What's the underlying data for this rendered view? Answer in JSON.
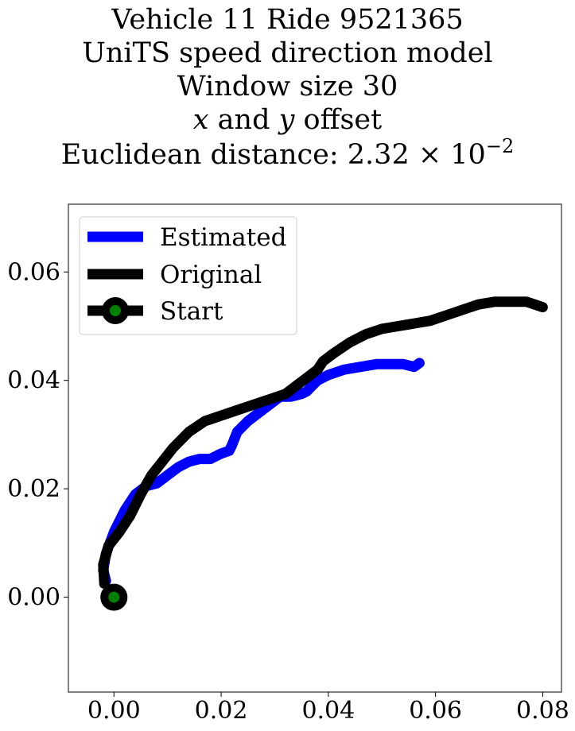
{
  "title": {
    "line1": "Vehicle 11 Ride 9521365",
    "line2": "UniTS speed direction model",
    "line3": "Window size 30",
    "line4_var1": "x",
    "line4_and": " and ",
    "line4_var2": "y",
    "line4_rest": " offset",
    "line5_prefix": "Euclidean distance: 2.32 × 10",
    "line5_exponent": "−2"
  },
  "chart_data": {
    "type": "line",
    "xlim": [
      -0.0085,
      0.0835
    ],
    "ylim": [
      -0.0175,
      0.0725
    ],
    "xticks": [
      0.0,
      0.02,
      0.04,
      0.06,
      0.08
    ],
    "xtick_labels": [
      "0.00",
      "0.02",
      "0.04",
      "0.06",
      "0.08"
    ],
    "yticks": [
      0.0,
      0.02,
      0.04,
      0.06
    ],
    "ytick_labels": [
      "0.00",
      "0.02",
      "0.04",
      "0.06"
    ],
    "grid": false,
    "legend_position": "upper left",
    "series": [
      {
        "name": "Estimated",
        "color": "#0000ff",
        "x": [
          -0.0015,
          -0.002,
          -0.0015,
          0.0,
          0.002,
          0.004,
          0.006,
          0.008,
          0.01,
          0.012,
          0.014,
          0.016,
          0.018,
          0.02,
          0.0215,
          0.022,
          0.023,
          0.025,
          0.027,
          0.029,
          0.031,
          0.033,
          0.035,
          0.036,
          0.037,
          0.038,
          0.04,
          0.043,
          0.046,
          0.049,
          0.052,
          0.054,
          0.056,
          0.057
        ],
        "y": [
          0.003,
          0.005,
          0.008,
          0.012,
          0.016,
          0.019,
          0.0205,
          0.021,
          0.0225,
          0.024,
          0.025,
          0.0255,
          0.0255,
          0.0265,
          0.027,
          0.028,
          0.0305,
          0.0325,
          0.034,
          0.0355,
          0.037,
          0.037,
          0.0375,
          0.038,
          0.039,
          0.04,
          0.041,
          0.042,
          0.0425,
          0.043,
          0.043,
          0.043,
          0.0425,
          0.0432
        ]
      },
      {
        "name": "Original",
        "color": "#000000",
        "x": [
          -0.0018,
          -0.002,
          -0.001,
          0.001,
          0.003,
          0.005,
          0.007,
          0.009,
          0.011,
          0.014,
          0.017,
          0.02,
          0.023,
          0.026,
          0.029,
          0.032,
          0.034,
          0.036,
          0.038,
          0.039,
          0.041,
          0.044,
          0.047,
          0.05,
          0.053,
          0.056,
          0.059,
          0.062,
          0.065,
          0.068,
          0.071,
          0.074,
          0.077,
          0.08
        ],
        "y": [
          0.0025,
          0.006,
          0.0095,
          0.012,
          0.015,
          0.019,
          0.0225,
          0.025,
          0.0275,
          0.0305,
          0.0325,
          0.0335,
          0.0345,
          0.0355,
          0.0365,
          0.0375,
          0.039,
          0.0405,
          0.042,
          0.0435,
          0.045,
          0.047,
          0.0485,
          0.0495,
          0.05,
          0.0505,
          0.051,
          0.052,
          0.053,
          0.054,
          0.0545,
          0.0545,
          0.0545,
          0.0535
        ]
      }
    ],
    "start_point": {
      "name": "Start",
      "x": 0.0,
      "y": 0.0,
      "marker_color": "#008000",
      "edge_color": "#000000"
    },
    "legend": [
      "Estimated",
      "Original",
      "Start"
    ]
  }
}
